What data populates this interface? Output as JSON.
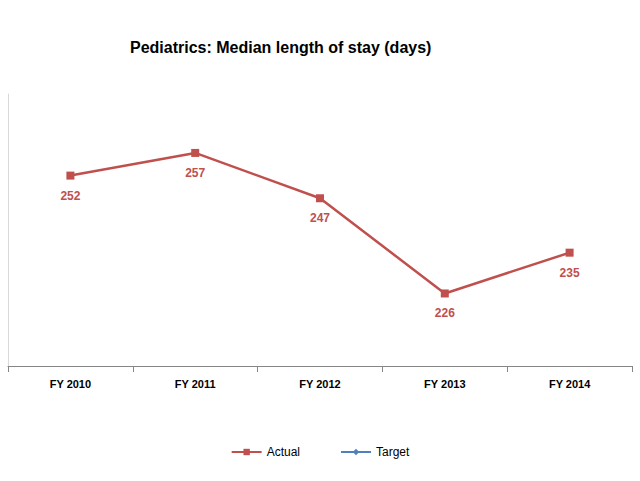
{
  "chart_data": {
    "type": "line",
    "title": "Pediatrics: Median length of stay (days)",
    "categories": [
      "FY 2010",
      "FY 2011",
      "FY 2012",
      "FY 2013",
      "FY 2014"
    ],
    "series": [
      {
        "name": "Actual",
        "color": "#c0504d",
        "marker": "square",
        "values": [
          252,
          257,
          247,
          226,
          235
        ]
      },
      {
        "name": "Target",
        "color": "#4f81bd",
        "marker": "diamond",
        "values": [
          null,
          null,
          null,
          null,
          null
        ]
      }
    ],
    "ylim": [
      210,
      270
    ],
    "grid": false,
    "legend": "bottom",
    "data_labels": true,
    "tick_labels": "x"
  }
}
